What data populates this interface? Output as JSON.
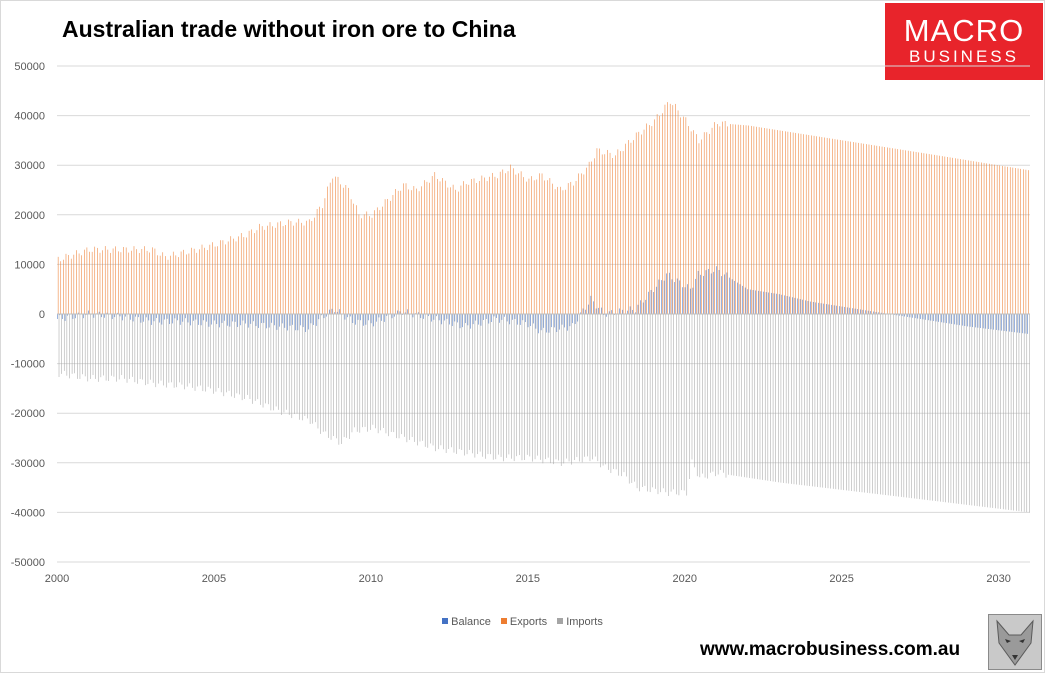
{
  "title": "Australian trade without iron ore to China",
  "logo": {
    "line1": "MACRO",
    "line2": "BUSINESS",
    "color": "#e8242b"
  },
  "website": "www.macrobusiness.com.au",
  "colors": {
    "balance": "#4472c4",
    "exports": "#ed7d31",
    "imports": "#a5a5a5",
    "grid": "#d9d9d9"
  },
  "chart_data": {
    "type": "bar",
    "subtype": "monthly clustered columns",
    "frequency": "monthly",
    "start": "2000-01",
    "end": "2030-12",
    "ylim": [
      -50000,
      50000
    ],
    "y_ticks": [
      50000,
      40000,
      30000,
      20000,
      10000,
      0,
      -10000,
      -20000,
      -30000,
      -40000,
      -50000
    ],
    "x_ticks": [
      "2000",
      "2005",
      "2010",
      "2015",
      "2020",
      "2025",
      "2030"
    ],
    "grid": true,
    "legend_position": "bottom",
    "series": [
      {
        "name": "Balance",
        "key": "balance",
        "anchors": [
          [
            "2000-01",
            -1000
          ],
          [
            "2001-01",
            0
          ],
          [
            "2002-01",
            -500
          ],
          [
            "2003-01",
            -1500
          ],
          [
            "2004-01",
            -1500
          ],
          [
            "2005-01",
            -2000
          ],
          [
            "2006-01",
            -2000
          ],
          [
            "2007-01",
            -2500
          ],
          [
            "2008-01",
            -3000
          ],
          [
            "2008-08",
            0
          ],
          [
            "2008-11",
            1000
          ],
          [
            "2009-06",
            -1500
          ],
          [
            "2010-01",
            -2000
          ],
          [
            "2011-01",
            500
          ],
          [
            "2012-01",
            -1000
          ],
          [
            "2013-01",
            -2500
          ],
          [
            "2014-01",
            -1000
          ],
          [
            "2015-01",
            -2000
          ],
          [
            "2015-06",
            -3500
          ],
          [
            "2016-06",
            -2500
          ],
          [
            "2017-01",
            3000
          ],
          [
            "2017-06",
            0
          ],
          [
            "2018-06",
            1000
          ],
          [
            "2019-06",
            8000
          ],
          [
            "2020-03",
            5000
          ],
          [
            "2020-06",
            8000
          ],
          [
            "2021-01",
            9000
          ],
          [
            "2022-01",
            5000
          ],
          [
            "2023-01",
            4000
          ],
          [
            "2024-01",
            2500
          ],
          [
            "2025-01",
            1500
          ],
          [
            "2026-01",
            500
          ],
          [
            "2027-01",
            -500
          ],
          [
            "2028-01",
            -1500
          ],
          [
            "2029-01",
            -2500
          ],
          [
            "2030-12",
            -4000
          ]
        ]
      },
      {
        "name": "Exports",
        "key": "exports",
        "anchors": [
          [
            "2000-01",
            11000
          ],
          [
            "2001-01",
            13000
          ],
          [
            "2002-01",
            13000
          ],
          [
            "2003-01",
            13000
          ],
          [
            "2003-06",
            11500
          ],
          [
            "2004-06",
            13000
          ],
          [
            "2005-01",
            14000
          ],
          [
            "2006-01",
            16000
          ],
          [
            "2006-06",
            17500
          ],
          [
            "2007-06",
            18500
          ],
          [
            "2008-01",
            18500
          ],
          [
            "2008-06",
            22000
          ],
          [
            "2008-10",
            28000
          ],
          [
            "2009-04",
            25000
          ],
          [
            "2009-08",
            20000
          ],
          [
            "2010-01",
            20000
          ],
          [
            "2010-06",
            22500
          ],
          [
            "2011-01",
            26000
          ],
          [
            "2011-06",
            25000
          ],
          [
            "2012-01",
            28000
          ],
          [
            "2012-09",
            25000
          ],
          [
            "2013-01",
            26500
          ],
          [
            "2014-01",
            28000
          ],
          [
            "2014-06",
            29500
          ],
          [
            "2015-01",
            27000
          ],
          [
            "2015-06",
            28000
          ],
          [
            "2016-01",
            25000
          ],
          [
            "2016-06",
            26500
          ],
          [
            "2016-12",
            30000
          ],
          [
            "2017-03",
            33000
          ],
          [
            "2017-10",
            32000
          ],
          [
            "2018-06",
            36000
          ],
          [
            "2019-01",
            39000
          ],
          [
            "2019-07",
            43000
          ],
          [
            "2020-01",
            39000
          ],
          [
            "2020-06",
            35000
          ],
          [
            "2021-01",
            38500
          ],
          [
            "2022-01",
            38000
          ],
          [
            "2024-01",
            36000
          ],
          [
            "2026-01",
            34000
          ],
          [
            "2028-01",
            32000
          ],
          [
            "2030-12",
            29000
          ]
        ]
      },
      {
        "name": "Imports",
        "key": "imports",
        "anchors": [
          [
            "2000-01",
            -12000
          ],
          [
            "2001-01",
            -13000
          ],
          [
            "2002-01",
            -13000
          ],
          [
            "2003-01",
            -14000
          ],
          [
            "2004-01",
            -14500
          ],
          [
            "2005-01",
            -15500
          ],
          [
            "2006-01",
            -17000
          ],
          [
            "2007-01",
            -19500
          ],
          [
            "2008-01",
            -21500
          ],
          [
            "2008-06",
            -24000
          ],
          [
            "2009-01",
            -26000
          ],
          [
            "2009-06",
            -23500
          ],
          [
            "2010-01",
            -23000
          ],
          [
            "2011-01",
            -25000
          ],
          [
            "2012-01",
            -27000
          ],
          [
            "2013-01",
            -28000
          ],
          [
            "2014-01",
            -29000
          ],
          [
            "2015-01",
            -29000
          ],
          [
            "2016-01",
            -30000
          ],
          [
            "2017-01",
            -29000
          ],
          [
            "2017-06",
            -31000
          ],
          [
            "2018-01",
            -32500
          ],
          [
            "2018-06",
            -35000
          ],
          [
            "2019-06",
            -36000
          ],
          [
            "2020-01",
            -36000
          ],
          [
            "2020-03",
            -30000
          ],
          [
            "2020-06",
            -33000
          ],
          [
            "2021-01",
            -32000
          ],
          [
            "2021-06",
            -32500
          ],
          [
            "2023-01",
            -34000
          ],
          [
            "2025-01",
            -35500
          ],
          [
            "2027-01",
            -37000
          ],
          [
            "2030-12",
            -40000
          ]
        ]
      }
    ]
  }
}
